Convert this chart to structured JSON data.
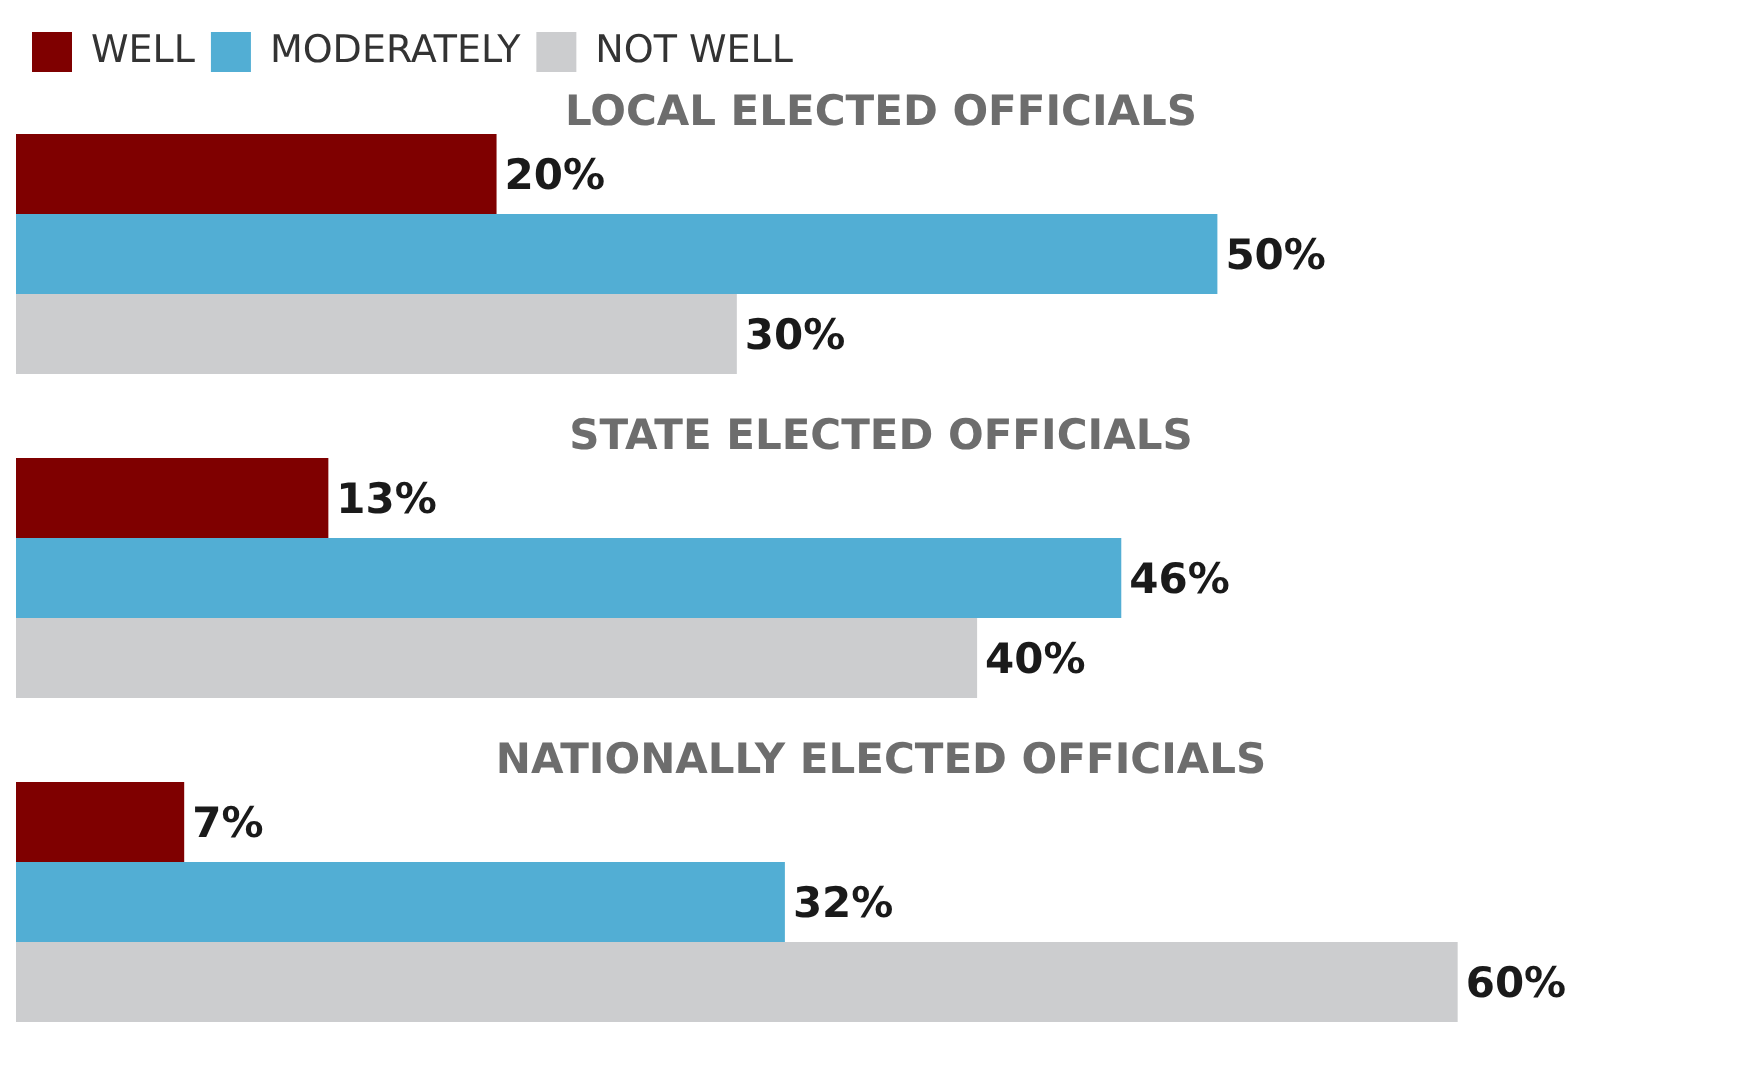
{
  "chart_data": {
    "type": "bar",
    "orientation": "horizontal",
    "legend": "top left",
    "categories": [
      "LOCAL ELECTED OFFICIALS",
      "STATE ELECTED OFFICIALS",
      "NATIONALLY ELECTED OFFICIALS"
    ],
    "series": [
      {
        "name": "WELL",
        "color": "#7f0000",
        "values": [
          20,
          13,
          7
        ],
        "value_labels": [
          "20%",
          "13%",
          "7%"
        ]
      },
      {
        "name": "MODERATELY",
        "color": "#52aed4",
        "values": [
          50,
          46,
          32
        ],
        "value_labels": [
          "50%",
          "46%",
          "32%"
        ]
      },
      {
        "name": "NOT WELL",
        "color": "#cccdcf",
        "values": [
          30,
          40,
          60
        ],
        "value_labels": [
          "30%",
          "40%",
          "60%"
        ]
      }
    ]
  }
}
